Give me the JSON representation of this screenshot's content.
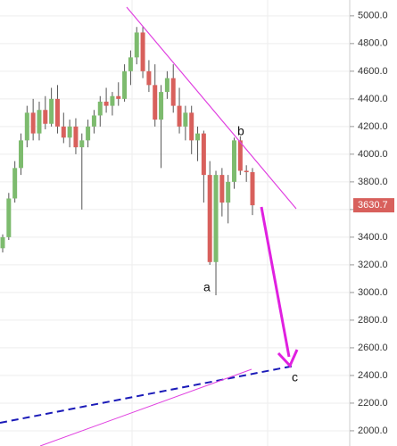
{
  "chart_data": {
    "type": "candlestick",
    "up_color": "#7dbb6e",
    "down_color": "#d8605c",
    "open": [
      3320,
      3400,
      3680,
      3900,
      4100,
      4300,
      4150,
      4320,
      4220,
      4400,
      4200,
      4120,
      4200,
      4050,
      4100,
      4200,
      4280,
      4380,
      4350,
      4420,
      4400,
      4600,
      4700,
      4880,
      4600,
      4500,
      4250,
      4450,
      4550,
      4350,
      4200,
      4300,
      4100,
      4150,
      3850,
      3220,
      3850,
      3650,
      3800,
      4100,
      3880,
      3870
    ],
    "high": [
      3420,
      3720,
      3950,
      4150,
      4350,
      4400,
      4380,
      4420,
      4480,
      4500,
      4300,
      4250,
      4260,
      4150,
      4250,
      4320,
      4420,
      4480,
      4450,
      4520,
      4650,
      4750,
      4920,
      4920,
      4680,
      4650,
      4500,
      4600,
      4650,
      4480,
      4350,
      4350,
      4200,
      4170,
      3950,
      3880,
      3900,
      3850,
      4120,
      4130,
      3920,
      3900
    ],
    "low": [
      3290,
      3380,
      3650,
      3850,
      4050,
      4100,
      4100,
      4180,
      4200,
      4150,
      4080,
      4050,
      4000,
      3600,
      4050,
      4150,
      4200,
      4300,
      4280,
      4350,
      4380,
      4500,
      4650,
      4550,
      4450,
      4200,
      3900,
      4400,
      4300,
      4150,
      4100,
      4000,
      3950,
      3650,
      3200,
      2980,
      3550,
      3500,
      3750,
      3850,
      3800,
      3560
    ],
    "close": [
      3400,
      3680,
      3900,
      4100,
      4300,
      4150,
      4320,
      4220,
      4400,
      4200,
      4120,
      4200,
      4050,
      4100,
      4200,
      4280,
      4380,
      4350,
      4420,
      4400,
      4600,
      4700,
      4880,
      4600,
      4500,
      4250,
      4450,
      4550,
      4350,
      4200,
      4300,
      4100,
      4150,
      3850,
      3220,
      3850,
      3650,
      3800,
      4100,
      3880,
      3870,
      3630.7
    ],
    "ylim": [
      1890,
      5115
    ],
    "yticks": [
      {
        "value": 2000,
        "label": "2000.0"
      },
      {
        "value": 2200,
        "label": "2200.0"
      },
      {
        "value": 2400,
        "label": "2400.0"
      },
      {
        "value": 2600,
        "label": "2600.0"
      },
      {
        "value": 2800,
        "label": "2800.0"
      },
      {
        "value": 3000,
        "label": "3000.0"
      },
      {
        "value": 3200,
        "label": "3200.0"
      },
      {
        "value": 3400,
        "label": "3400.0"
      },
      {
        "value": 3600,
        "label": "3600.0"
      },
      {
        "value": 3800,
        "label": "3800.0"
      },
      {
        "value": 4000,
        "label": "4000.0"
      },
      {
        "value": 4200,
        "label": "4200.0"
      },
      {
        "value": 4400,
        "label": "4400.0"
      },
      {
        "value": 4600,
        "label": "4600.0"
      },
      {
        "value": 4800,
        "label": "4800.0"
      },
      {
        "value": 5000,
        "label": "5000.0"
      }
    ],
    "last_price": 3630.7,
    "annotations": [
      "a",
      "b",
      "c"
    ],
    "grid": true
  }
}
